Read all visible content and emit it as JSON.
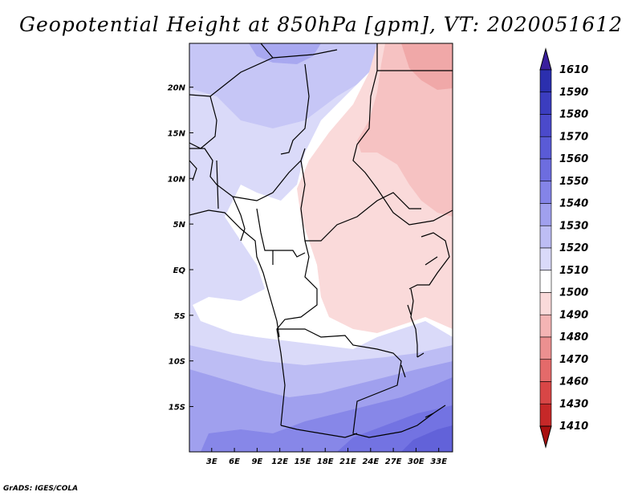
{
  "chart_data": {
    "type": "heatmap",
    "title": "Geopotential Height at 850hPa [gpm], VT: 2020051612",
    "variable": "Geopotential Height",
    "level": "850hPa",
    "units": "gpm",
    "valid_time": "2020051612",
    "x_ticks": [
      "3E",
      "6E",
      "9E",
      "12E",
      "15E",
      "18E",
      "21E",
      "24E",
      "27E",
      "30E",
      "33E"
    ],
    "x_tick_values": [
      3,
      6,
      9,
      12,
      15,
      18,
      21,
      24,
      27,
      30,
      33
    ],
    "y_ticks": [
      "20N",
      "15N",
      "10N",
      "5N",
      "EQ",
      "5S",
      "10S",
      "15S"
    ],
    "y_tick_values": [
      20,
      15,
      10,
      5,
      0,
      -5,
      -10,
      -15
    ],
    "lon_range": [
      0,
      35
    ],
    "lat_range": [
      -20,
      24
    ],
    "colorbar": {
      "labels": [
        "1610",
        "1590",
        "1580",
        "1570",
        "1560",
        "1550",
        "1540",
        "1530",
        "1520",
        "1510",
        "1500",
        "1490",
        "1480",
        "1470",
        "1460",
        "1430",
        "1410"
      ],
      "colors": [
        "#3a1f9d",
        "#2b2fae",
        "#3b3dbf",
        "#4b4acb",
        "#5a5bd6",
        "#6d6ddf",
        "#8484e8",
        "#a0a0ee",
        "#bdbdf4",
        "#dadaf9",
        "#ffffff",
        "#fadada",
        "#f4b4b4",
        "#ec9090",
        "#e46a6a",
        "#d84646",
        "#c62828",
        "#a81010"
      ],
      "extend": "both"
    },
    "fields": {
      "background": "#dadaf9",
      "contours": [
        {
          "level": "1510",
          "color": "#ffffff",
          "pts": [
            [
              0,
              0
            ],
            [
              0,
              0
            ],
            [
              0,
              0
            ]
          ],
          "ref": "west-central"
        },
        {
          "level": "1500",
          "color": "#fadada",
          "ref": "central-east"
        },
        {
          "level": "1490",
          "color": "#f4b4b4",
          "ref": "northeast"
        },
        {
          "level": "1520",
          "color": "#bdbdf4",
          "ref": "south"
        },
        {
          "level": "1530",
          "color": "#a0a0ee",
          "ref": "far-south"
        }
      ]
    }
  },
  "credit": "GrADS: IGES/COLA"
}
